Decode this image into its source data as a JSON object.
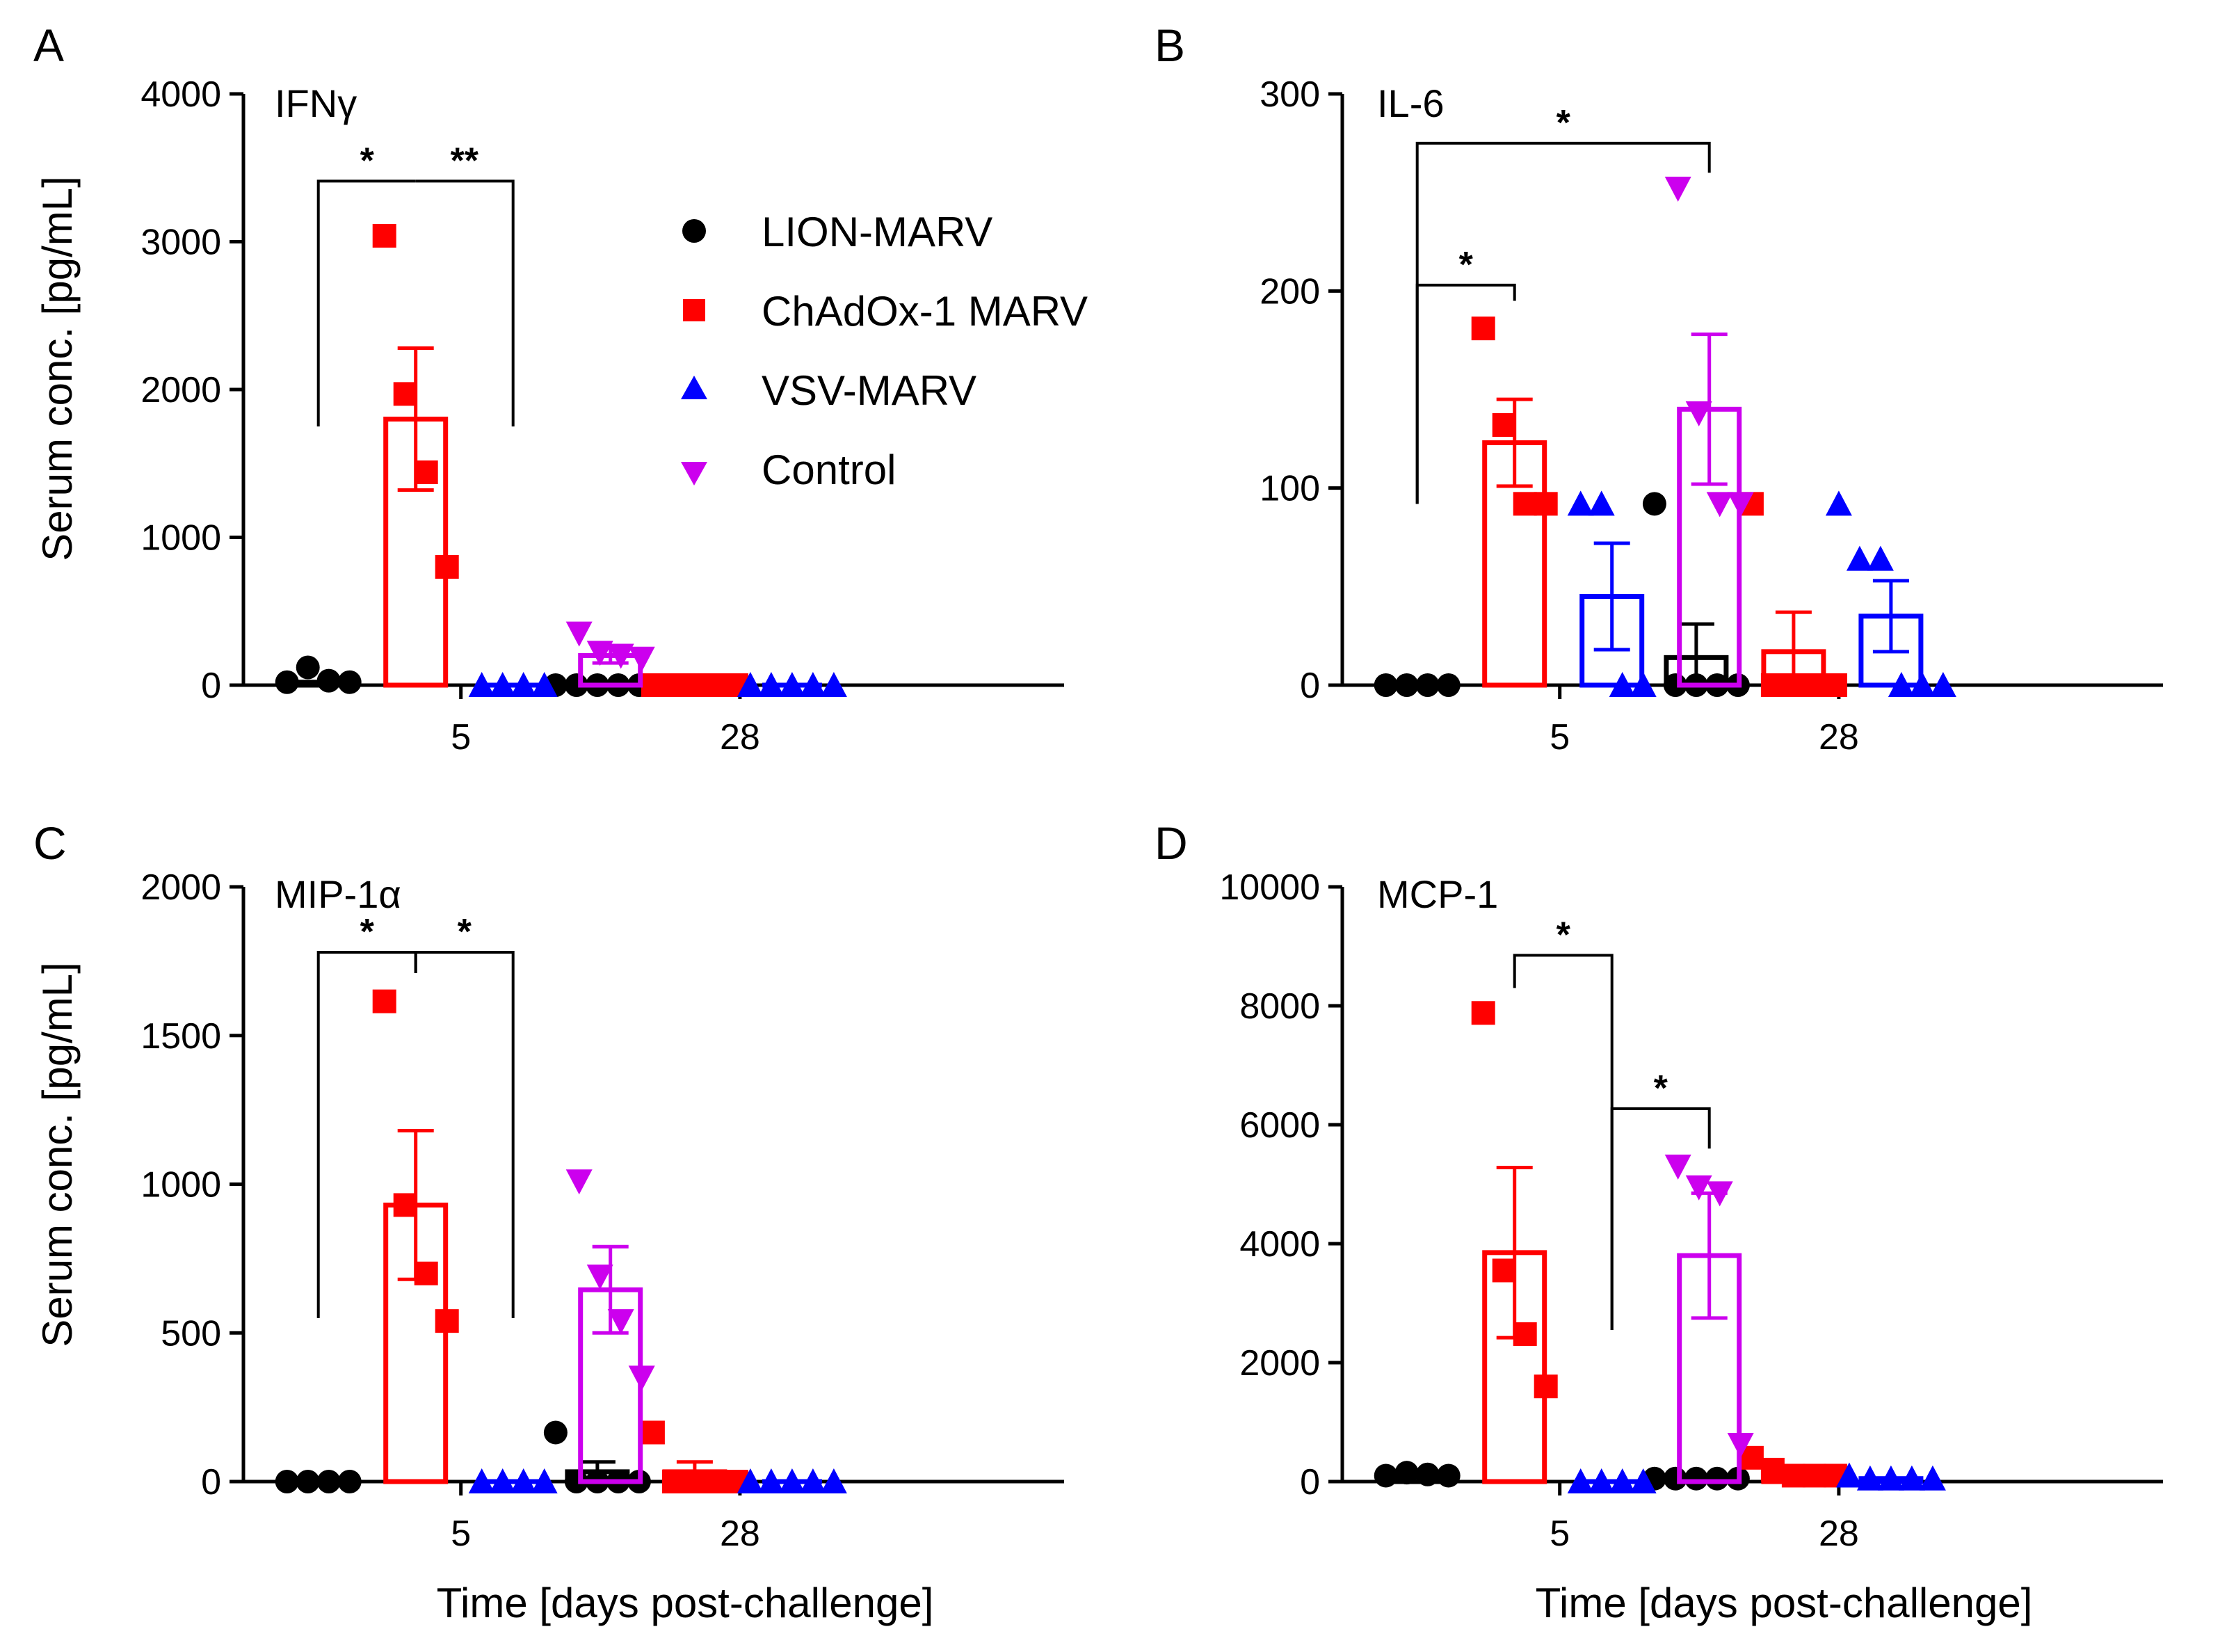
{
  "colors": {
    "LION-MARV": "#000000",
    "ChAdOx-1 MARV": "#ff0000",
    "VSV-MARV": "#0000ff",
    "Control": "#cc00ee"
  },
  "legend": [
    {
      "label": "LION-MARV",
      "marker": "circle"
    },
    {
      "label": "ChAdOx-1 MARV",
      "marker": "square"
    },
    {
      "label": "VSV-MARV",
      "marker": "triangle-up"
    },
    {
      "label": "Control",
      "marker": "triangle-down"
    }
  ],
  "chart_data": [
    {
      "panel": "A",
      "type": "bar",
      "title": "IFNγ",
      "ylabel": "Serum conc. [pg/mL]",
      "xlabel": "",
      "ylim": [
        0,
        4000
      ],
      "yticks": [
        0,
        1000,
        2000,
        3000,
        4000
      ],
      "categories": [
        "5",
        "28"
      ],
      "series": [
        {
          "name": "LION-MARV",
          "groups": [
            {
              "mean": 20,
              "sem": 0,
              "points": [
                20,
                120,
                30,
                20
              ]
            },
            {
              "mean": 0,
              "sem": 0,
              "points": [
                0,
                0,
                0,
                0,
                0
              ]
            }
          ]
        },
        {
          "name": "ChAdOx-1 MARV",
          "groups": [
            {
              "mean": 1800,
              "sem": 480,
              "points": [
                3040,
                1970,
                1440,
                800
              ]
            },
            {
              "mean": 0,
              "sem": 0,
              "points": [
                0,
                0,
                0,
                0,
                0
              ]
            }
          ]
        },
        {
          "name": "VSV-MARV",
          "groups": [
            {
              "mean": 0,
              "sem": 0,
              "points": [
                0,
                0,
                0,
                0
              ]
            },
            {
              "mean": 0,
              "sem": 0,
              "points": [
                0,
                0,
                0,
                0,
                0
              ]
            }
          ]
        },
        {
          "name": "Control",
          "groups": [
            {
              "mean": 200,
              "sem": 50,
              "points": [
                350,
                220,
                200,
                180
              ]
            },
            null
          ]
        }
      ],
      "significance": [
        {
          "from": [
            "LION-MARV",
            0
          ],
          "to": [
            "ChAdOx-1 MARV",
            0
          ],
          "label": "*",
          "bar_y": 3410,
          "start_y": 1750,
          "end_y": 3410
        },
        {
          "from": [
            "ChAdOx-1 MARV",
            0
          ],
          "to": [
            "VSV-MARV",
            0
          ],
          "label": "**",
          "bar_y": 3410,
          "start_y": 3410,
          "end_y": 1750
        }
      ]
    },
    {
      "panel": "B",
      "type": "bar",
      "title": "IL-6",
      "ylabel": "",
      "xlabel": "",
      "ylim": [
        0,
        300
      ],
      "yticks": [
        0,
        100,
        200,
        300
      ],
      "categories": [
        "5",
        "28"
      ],
      "series": [
        {
          "name": "LION-MARV",
          "groups": [
            {
              "mean": 0,
              "sem": 0,
              "points": [
                0,
                0,
                0,
                0
              ]
            },
            {
              "mean": 14,
              "sem": 17,
              "points": [
                92,
                0,
                0,
                0,
                0
              ]
            }
          ]
        },
        {
          "name": "ChAdOx-1 MARV",
          "groups": [
            {
              "mean": 123,
              "sem": 22,
              "points": [
                181,
                132,
                92,
                92
              ]
            },
            {
              "mean": 17,
              "sem": 20,
              "points": [
                92,
                0,
                0,
                0,
                0
              ]
            }
          ]
        },
        {
          "name": "VSV-MARV",
          "groups": [
            {
              "mean": 45,
              "sem": 27,
              "points": [
                92,
                92,
                0,
                0
              ]
            },
            {
              "mean": 35,
              "sem": 18,
              "points": [
                92,
                64,
                64,
                0,
                0,
                0
              ]
            }
          ]
        },
        {
          "name": "Control",
          "groups": [
            {
              "mean": 140,
              "sem": 38,
              "points": [
                252,
                138,
                92,
                92
              ]
            },
            null
          ]
        }
      ],
      "significance": [
        {
          "from": [
            "LION-MARV",
            0
          ],
          "to": [
            "Control",
            0
          ],
          "label": "*",
          "bar_y": 275,
          "start_y": 92,
          "end_y": 260
        },
        {
          "from": [
            "LION-MARV",
            0
          ],
          "to": [
            "ChAdOx-1 MARV",
            0
          ],
          "label": "*",
          "bar_y": 203,
          "start_y": 92,
          "end_y": 195
        }
      ]
    },
    {
      "panel": "C",
      "type": "bar",
      "title": "MIP-1α",
      "ylabel": "Serum conc. [pg/mL]",
      "xlabel": "Time [days post-challenge]",
      "ylim": [
        0,
        2000
      ],
      "yticks": [
        0,
        500,
        1000,
        1500,
        2000
      ],
      "categories": [
        "5",
        "28"
      ],
      "series": [
        {
          "name": "LION-MARV",
          "groups": [
            {
              "mean": 0,
              "sem": 0,
              "points": [
                0,
                0,
                0,
                0
              ]
            },
            {
              "mean": 33,
              "sem": 33,
              "points": [
                165,
                0,
                0,
                0,
                0
              ]
            }
          ]
        },
        {
          "name": "ChAdOx-1 MARV",
          "groups": [
            {
              "mean": 930,
              "sem": 250,
              "points": [
                1615,
                930,
                700,
                540
              ]
            },
            {
              "mean": 33,
              "sem": 33,
              "points": [
                165,
                0,
                0,
                0,
                0
              ]
            }
          ]
        },
        {
          "name": "VSV-MARV",
          "groups": [
            {
              "mean": 0,
              "sem": 0,
              "points": [
                0,
                0,
                0,
                0
              ]
            },
            {
              "mean": 0,
              "sem": 0,
              "points": [
                0,
                0,
                0,
                0,
                0
              ]
            }
          ]
        },
        {
          "name": "Control",
          "groups": [
            {
              "mean": 645,
              "sem": 145,
              "points": [
                1010,
                690,
                540,
                350
              ]
            },
            null
          ]
        }
      ],
      "significance": [
        {
          "from": [
            "LION-MARV",
            0
          ],
          "to": [
            "ChAdOx-1 MARV",
            0
          ],
          "label": "*",
          "bar_y": 1780,
          "start_y": 550,
          "end_y": 1710
        },
        {
          "from": [
            "ChAdOx-1 MARV",
            0
          ],
          "to": [
            "VSV-MARV",
            0
          ],
          "label": "*",
          "bar_y": 1780,
          "start_y": 1710,
          "end_y": 550
        }
      ]
    },
    {
      "panel": "D",
      "type": "bar",
      "title": "MCP-1",
      "ylabel": "",
      "xlabel": "Time [days post-challenge]",
      "ylim": [
        0,
        10000
      ],
      "yticks": [
        0,
        2000,
        4000,
        6000,
        8000,
        10000
      ],
      "categories": [
        "5",
        "28"
      ],
      "series": [
        {
          "name": "LION-MARV",
          "groups": [
            {
              "mean": 100,
              "sem": 0,
              "points": [
                100,
                150,
                120,
                100
              ]
            },
            {
              "mean": 50,
              "sem": 0,
              "points": [
                50,
                50,
                50,
                50,
                50
              ]
            }
          ]
        },
        {
          "name": "ChAdOx-1 MARV",
          "groups": [
            {
              "mean": 3850,
              "sem": 1430,
              "points": [
                7880,
                3550,
                2480,
                1600
              ]
            },
            {
              "mean": 150,
              "sem": 0,
              "points": [
                400,
                200,
                100,
                100,
                100
              ]
            }
          ]
        },
        {
          "name": "VSV-MARV",
          "groups": [
            {
              "mean": 0,
              "sem": 0,
              "points": [
                0,
                0,
                0,
                0
              ]
            },
            {
              "mean": 50,
              "sem": 0,
              "points": [
                100,
                50,
                50,
                50,
                50
              ]
            }
          ]
        },
        {
          "name": "Control",
          "groups": [
            {
              "mean": 3800,
              "sem": 1050,
              "points": [
                5300,
                4950,
                4850,
                620
              ]
            },
            null
          ]
        }
      ],
      "significance": [
        {
          "from": [
            "ChAdOx-1 MARV",
            0
          ],
          "to": [
            "VSV-MARV",
            0
          ],
          "label": "*",
          "bar_y": 8850,
          "start_y": 8300,
          "end_y": 2550
        },
        {
          "from": [
            "VSV-MARV",
            0
          ],
          "to": [
            "Control",
            0
          ],
          "label": "*",
          "bar_y": 6270,
          "start_y": 2550,
          "end_y": 5600
        }
      ]
    }
  ]
}
